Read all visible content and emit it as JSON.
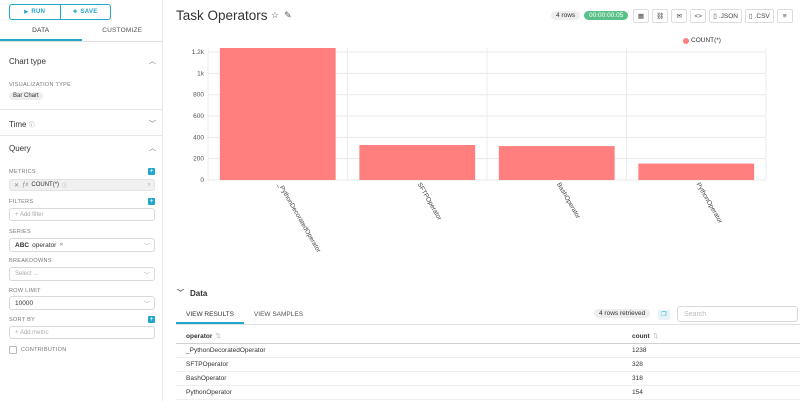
{
  "left_panel": {
    "run_label": "RUN",
    "save_label": "SAVE",
    "tabs": [
      "DATA",
      "CUSTOMIZE"
    ],
    "chart_type": {
      "header": "Chart type",
      "viz_label": "VISUALIZATION TYPE",
      "viz_value": "Bar Chart"
    },
    "time": {
      "header": "Time"
    },
    "query": {
      "header": "Query",
      "metrics_label": "METRICS",
      "metric_fn": "ƒx",
      "metric_value": "COUNT(*)",
      "filters_label": "FILTERS",
      "filters_placeholder": "+ Add filter",
      "series_label": "SERIES",
      "series_type": "ABC",
      "series_value": "operator",
      "breakdowns_label": "BREAKDOWNS",
      "breakdowns_placeholder": "Select ...",
      "row_limit_label": "ROW LIMIT",
      "row_limit_value": "10000",
      "sort_by_label": "SORT BY",
      "sort_by_placeholder": "+ Add metric",
      "contribution_label": "CONTRIBUTION"
    }
  },
  "header": {
    "title": "Task Operators",
    "rows_badge": "4 rows",
    "time_badge": "00:00:00.05",
    "json_label": ".JSON",
    "csv_label": ".CSV"
  },
  "colors": {
    "accent": "#20a7c9",
    "bar": "#ff7f7f",
    "success": "#5ac189"
  },
  "chart_data": {
    "type": "bar",
    "categories": [
      "_PythonDecoratedOperator",
      "SFTPOperator",
      "BashOperator",
      "PythonOperator"
    ],
    "series": [
      {
        "name": "COUNT(*)",
        "values": [
          1238,
          328,
          318,
          154
        ]
      }
    ],
    "ylim": [
      0,
      1238
    ],
    "yticks": [
      0,
      200,
      400,
      600,
      800,
      1000,
      1200
    ],
    "ytick_labels": [
      "0",
      "200",
      "400",
      "600",
      "800",
      "1k",
      "1.2k"
    ],
    "grid": true,
    "legend_position": "top-right"
  },
  "data_section": {
    "header": "Data",
    "tabs": [
      "VIEW RESULTS",
      "VIEW SAMPLES"
    ],
    "rows_retrieved": "4 rows retrieved",
    "search_placeholder": "Search",
    "columns": [
      "operator",
      "count"
    ],
    "rows": [
      [
        "_PythonDecoratedOperator",
        "1238"
      ],
      [
        "SFTPOperator",
        "328"
      ],
      [
        "BashOperator",
        "318"
      ],
      [
        "PythonOperator",
        "154"
      ]
    ]
  }
}
